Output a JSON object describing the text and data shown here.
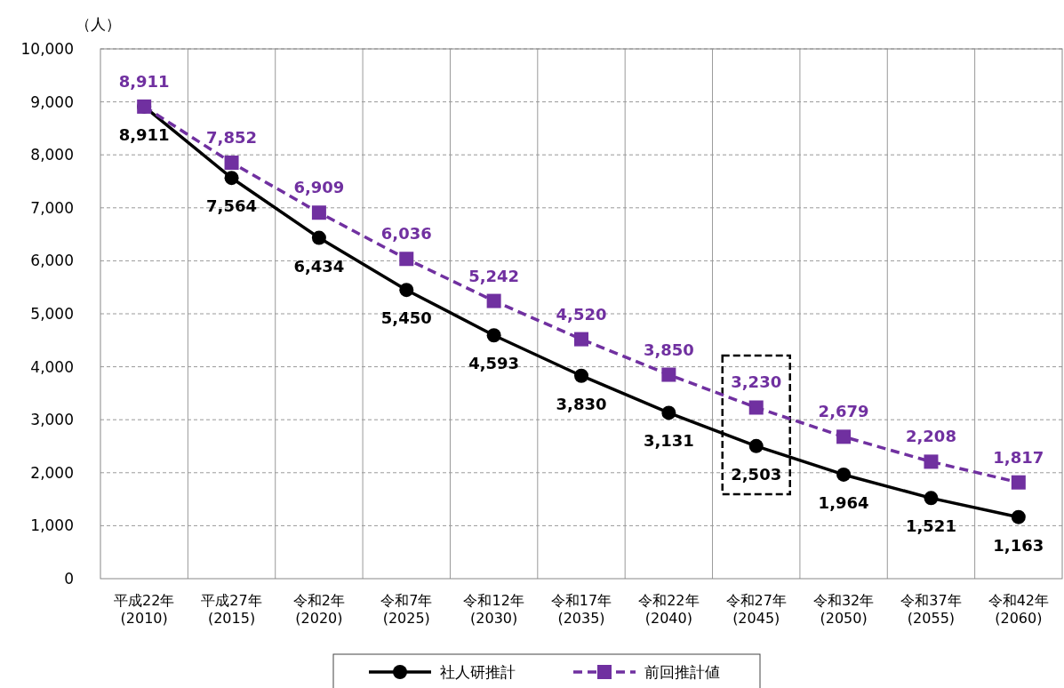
{
  "chart_data": {
    "type": "line",
    "ylabel": "（人）",
    "categories": [
      "平成22年\n(2010)",
      "平成27年\n(2015)",
      "令和2年\n(2020)",
      "令和7年\n(2025)",
      "令和12年\n(2030)",
      "令和17年\n(2035)",
      "令和22年\n(2040)",
      "令和27年\n(2045)",
      "令和32年\n(2050)",
      "令和37年\n(2055)",
      "令和42年\n(2060)"
    ],
    "series": [
      {
        "name": "社人研推計",
        "color": "#000000",
        "marker": "circle",
        "line_style": "solid",
        "values": [
          8911,
          7564,
          6434,
          5450,
          4593,
          3830,
          3131,
          2503,
          1964,
          1521,
          1163
        ],
        "value_labels": [
          "8,911",
          "7,564",
          "6,434",
          "5,450",
          "4,593",
          "3,830",
          "3,131",
          "2,503",
          "1,964",
          "1,521",
          "1,163"
        ]
      },
      {
        "name": "前回推計値",
        "color": "#7030a0",
        "marker": "square",
        "line_style": "dashed",
        "values": [
          8911,
          7852,
          6909,
          6036,
          5242,
          4520,
          3850,
          3230,
          2679,
          2208,
          1817
        ],
        "value_labels": [
          "8,911",
          "7,852",
          "6,909",
          "6,036",
          "5,242",
          "4,520",
          "3,850",
          "3,230",
          "2,679",
          "2,208",
          "1,817"
        ]
      }
    ],
    "ylim": [
      0,
      10000
    ],
    "yticks": [
      0,
      {
        "value": 1000,
        "label": "1,000"
      },
      {
        "value": 2000,
        "label": "2,000"
      },
      {
        "value": 3000,
        "label": "3,000"
      },
      {
        "value": 4000,
        "label": "4,000"
      },
      {
        "value": 5000,
        "label": "5,000"
      },
      {
        "value": 6000,
        "label": "6,000"
      },
      {
        "value": 7000,
        "label": "7,000"
      },
      {
        "value": 8000,
        "label": "8,000"
      },
      {
        "value": 9000,
        "label": "9,000"
      },
      {
        "value": 10000,
        "label": "10,000"
      }
    ],
    "grid": true,
    "legend": "bottom"
  }
}
